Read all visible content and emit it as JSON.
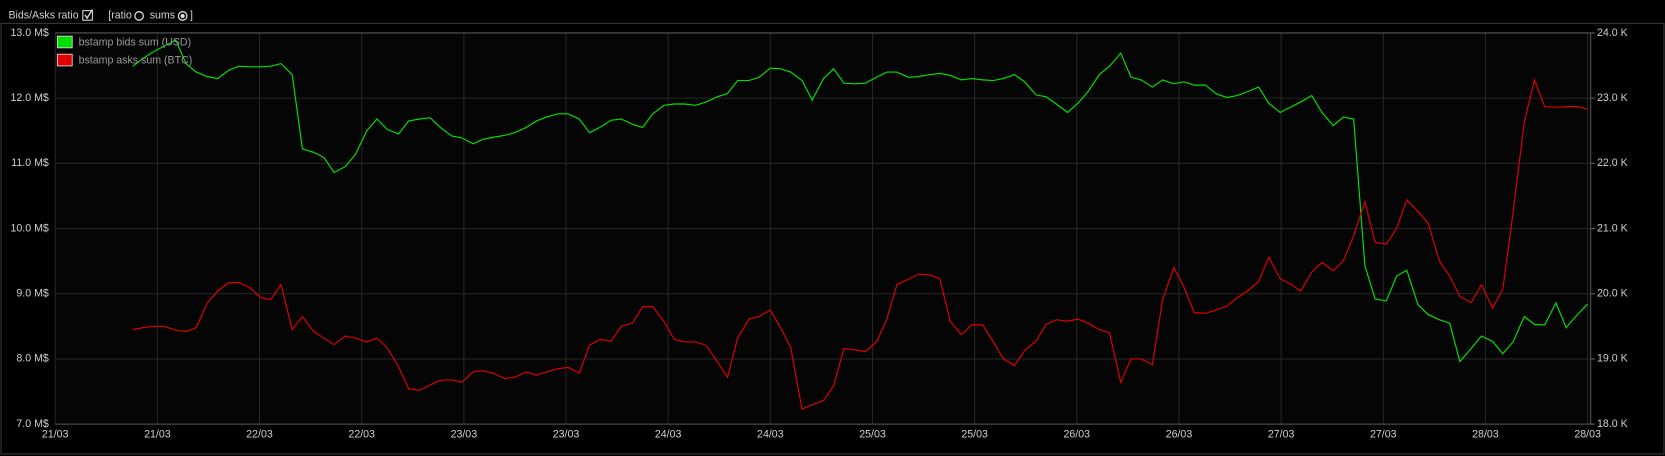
{
  "toolbar": {
    "title": "Bids/Asks ratio",
    "ratio_label": "[ratio",
    "sums_label": "sums",
    "close_bracket": "]"
  },
  "chart_data": {
    "type": "line",
    "grid": true,
    "legend": "top-left",
    "xlim": [
      0,
      15.03
    ],
    "xticks": [
      {
        "value": 0,
        "label": "21/03"
      },
      {
        "value": 1,
        "label": "21/03"
      },
      {
        "value": 2,
        "label": "22/03"
      },
      {
        "value": 3,
        "label": "22/03"
      },
      {
        "value": 4,
        "label": "23/03"
      },
      {
        "value": 5,
        "label": "23/03"
      },
      {
        "value": 6,
        "label": "24/03"
      },
      {
        "value": 7,
        "label": "24/03"
      },
      {
        "value": 8,
        "label": "25/03"
      },
      {
        "value": 9,
        "label": "25/03"
      },
      {
        "value": 10,
        "label": "26/03"
      },
      {
        "value": 11,
        "label": "26/03"
      },
      {
        "value": 12,
        "label": "27/03"
      },
      {
        "value": 13,
        "label": "27/03"
      },
      {
        "value": 14,
        "label": "28/03"
      },
      {
        "value": 15,
        "label": "28/03"
      }
    ],
    "ylim": [
      7,
      13
    ],
    "yticks": [
      {
        "value": 7,
        "label": "7.0 M$"
      },
      {
        "value": 8,
        "label": "8.0 M$"
      },
      {
        "value": 9,
        "label": "9.0 M$"
      },
      {
        "value": 10,
        "label": "10.0 M$"
      },
      {
        "value": 11,
        "label": "11.0 M$"
      },
      {
        "value": 12,
        "label": "12.0 M$"
      },
      {
        "value": 13,
        "label": "13.0 M$"
      }
    ],
    "y2lim": [
      18,
      24
    ],
    "y2ticks": [
      {
        "value": 18,
        "label": "18.0 K"
      },
      {
        "value": 19,
        "label": "19.0 K"
      },
      {
        "value": 20,
        "label": "20.0 K"
      },
      {
        "value": 21,
        "label": "21.0 K"
      },
      {
        "value": 22,
        "label": "22.0 K"
      },
      {
        "value": 23,
        "label": "23.0 K"
      },
      {
        "value": 24,
        "label": "24.0 K"
      }
    ],
    "x": [
      0.76,
      0.86,
      0.97,
      1.07,
      1.18,
      1.28,
      1.38,
      1.49,
      1.59,
      1.7,
      1.8,
      1.9,
      2.01,
      2.11,
      2.21,
      2.32,
      2.42,
      2.53,
      2.63,
      2.73,
      2.84,
      2.94,
      3.05,
      3.15,
      3.25,
      3.36,
      3.46,
      3.57,
      3.67,
      3.77,
      3.88,
      3.98,
      4.09,
      4.19,
      4.29,
      4.4,
      4.5,
      4.61,
      4.71,
      4.81,
      4.92,
      5.02,
      5.13,
      5.23,
      5.33,
      5.44,
      5.54,
      5.65,
      5.75,
      5.85,
      5.96,
      6.06,
      6.16,
      6.27,
      6.37,
      6.48,
      6.58,
      6.68,
      6.79,
      6.89,
      7.0,
      7.1,
      7.2,
      7.31,
      7.41,
      7.52,
      7.62,
      7.72,
      7.83,
      7.93,
      8.04,
      8.14,
      8.24,
      8.35,
      8.45,
      8.56,
      8.66,
      8.76,
      8.87,
      8.97,
      9.08,
      9.18,
      9.28,
      9.39,
      9.49,
      9.6,
      9.7,
      9.8,
      9.91,
      10.01,
      10.11,
      10.22,
      10.32,
      10.43,
      10.53,
      10.63,
      10.74,
      10.84,
      10.95,
      11.05,
      11.15,
      11.26,
      11.36,
      11.47,
      11.57,
      11.67,
      11.78,
      11.88,
      11.99,
      12.09,
      12.19,
      12.3,
      12.4,
      12.51,
      12.61,
      12.71,
      12.82,
      12.92,
      13.03,
      13.13,
      13.23,
      13.34,
      13.44,
      13.55,
      13.65,
      13.75,
      13.86,
      13.96,
      14.07,
      14.17,
      14.27,
      14.38,
      14.48,
      14.58,
      14.69,
      14.79,
      14.9,
      15.0
    ],
    "series": [
      {
        "name": "bstamp bids sum (USD)",
        "color": "#00e000",
        "axis": "y",
        "values": [
          12.49,
          12.61,
          12.72,
          12.8,
          12.89,
          12.53,
          12.4,
          12.33,
          12.3,
          12.43,
          12.49,
          12.48,
          12.48,
          12.49,
          12.53,
          12.36,
          11.22,
          11.17,
          11.09,
          10.86,
          10.95,
          11.14,
          11.5,
          11.68,
          11.52,
          11.45,
          11.65,
          11.68,
          11.7,
          11.55,
          11.42,
          11.39,
          11.3,
          11.37,
          11.4,
          11.43,
          11.47,
          11.55,
          11.65,
          11.71,
          11.76,
          11.76,
          11.68,
          11.47,
          11.55,
          11.66,
          11.68,
          11.6,
          11.55,
          11.76,
          11.89,
          11.91,
          11.91,
          11.89,
          11.94,
          12.02,
          12.07,
          12.27,
          12.27,
          12.32,
          12.46,
          12.45,
          12.4,
          12.27,
          11.97,
          12.3,
          12.45,
          12.23,
          12.22,
          12.23,
          12.32,
          12.4,
          12.4,
          12.32,
          12.33,
          12.36,
          12.38,
          12.35,
          12.28,
          12.3,
          12.28,
          12.27,
          12.3,
          12.36,
          12.25,
          12.05,
          12.02,
          11.91,
          11.78,
          11.92,
          12.1,
          12.36,
          12.49,
          12.69,
          12.32,
          12.28,
          12.17,
          12.28,
          12.22,
          12.25,
          12.2,
          12.2,
          12.07,
          12.01,
          12.04,
          12.1,
          12.17,
          11.92,
          11.78,
          11.86,
          11.94,
          12.04,
          11.78,
          11.58,
          11.71,
          11.68,
          9.43,
          8.92,
          8.89,
          9.27,
          9.36,
          8.83,
          8.68,
          8.6,
          8.55,
          7.96,
          8.16,
          8.35,
          8.27,
          8.08,
          8.26,
          8.65,
          8.53,
          8.52,
          8.86,
          8.48,
          8.68,
          8.84
        ]
      },
      {
        "name": "bstamp asks sum (BTC)",
        "color": "#e00000",
        "axis": "y2",
        "values": [
          19.45,
          19.48,
          19.5,
          19.5,
          19.44,
          19.42,
          19.48,
          19.86,
          20.04,
          20.17,
          20.17,
          20.1,
          19.94,
          19.91,
          20.14,
          19.45,
          19.65,
          19.42,
          19.32,
          19.22,
          19.35,
          19.32,
          19.26,
          19.32,
          19.17,
          18.88,
          18.54,
          18.52,
          18.6,
          18.67,
          18.68,
          18.64,
          18.8,
          18.82,
          18.78,
          18.7,
          18.72,
          18.8,
          18.75,
          18.8,
          18.85,
          18.87,
          18.78,
          19.21,
          19.3,
          19.27,
          19.5,
          19.55,
          19.8,
          19.8,
          19.57,
          19.3,
          19.26,
          19.26,
          19.21,
          18.96,
          18.72,
          19.32,
          19.61,
          19.65,
          19.75,
          19.48,
          19.17,
          18.23,
          18.3,
          18.36,
          18.59,
          19.16,
          19.14,
          19.11,
          19.26,
          19.61,
          20.14,
          20.22,
          20.3,
          20.29,
          20.23,
          19.58,
          19.37,
          19.52,
          19.52,
          19.27,
          19.0,
          18.9,
          19.13,
          19.27,
          19.53,
          19.6,
          19.58,
          19.61,
          19.55,
          19.45,
          19.4,
          18.64,
          19.0,
          19.0,
          18.91,
          19.91,
          20.4,
          20.1,
          19.71,
          19.7,
          19.75,
          19.81,
          19.94,
          20.04,
          20.19,
          20.56,
          20.23,
          20.15,
          20.04,
          20.33,
          20.48,
          20.35,
          20.51,
          20.89,
          21.41,
          20.79,
          20.76,
          21.0,
          21.44,
          21.26,
          21.08,
          20.5,
          20.27,
          19.96,
          19.86,
          20.14,
          19.78,
          20.07,
          21.24,
          22.63,
          23.28,
          22.87,
          22.86,
          22.87,
          22.87,
          22.83
        ]
      }
    ]
  }
}
